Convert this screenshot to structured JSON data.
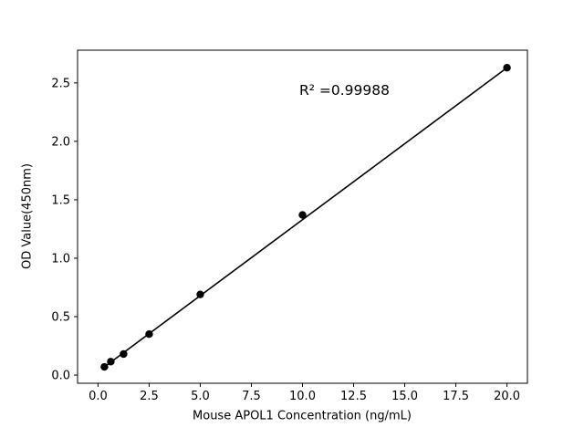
{
  "chart_data": {
    "type": "scatter",
    "title": "",
    "xlabel": "Mouse APOL1 Concentration (ng/mL)",
    "ylabel": "OD Value(450nm)",
    "annotation": "R² =0.99988",
    "x": [
      0.3125,
      0.625,
      1.25,
      2.5,
      5,
      10,
      20
    ],
    "y": [
      0.07,
      0.115,
      0.18,
      0.35,
      0.69,
      1.37,
      2.63
    ],
    "fit_line": {
      "x1": 0.3125,
      "y1": 0.07,
      "x2": 20,
      "y2": 2.63
    },
    "xlim": [
      -1,
      21
    ],
    "ylim": [
      -0.07,
      2.78
    ],
    "xtick_values": [
      0,
      2.5,
      5,
      7.5,
      10,
      12.5,
      15,
      17.5,
      20
    ],
    "xtick_labels": [
      "0.0",
      "2.5",
      "5.0",
      "7.5",
      "10.0",
      "12.5",
      "15.0",
      "17.5",
      "20.0"
    ],
    "ytick_values": [
      0,
      0.5,
      1,
      1.5,
      2,
      2.5
    ],
    "ytick_labels": [
      "0.0",
      "0.5",
      "1.0",
      "1.5",
      "2.0",
      "2.5"
    ],
    "grid": false,
    "legend": null,
    "marker_color": "#000000",
    "line_color": "#000000",
    "background_color": "#ffffff"
  }
}
